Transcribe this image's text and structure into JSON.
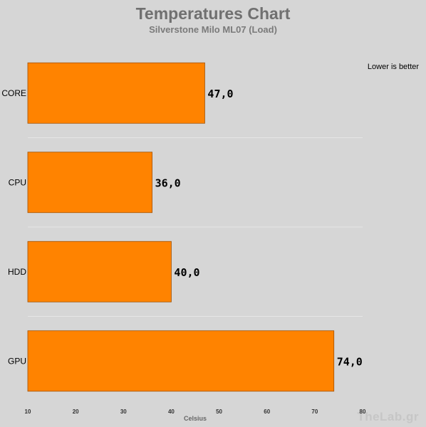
{
  "chart_data": {
    "type": "bar",
    "orientation": "horizontal",
    "title": "Temperatures Chart",
    "subtitle": "Silverstone Milo ML07 (Load)",
    "xlabel": "Celsius",
    "ylabel": "",
    "xlim": [
      10,
      80
    ],
    "x_ticks": [
      "10",
      "20",
      "30",
      "40",
      "50",
      "60",
      "70",
      "80"
    ],
    "categories": [
      "CORE",
      "CPU",
      "HDD",
      "GPU"
    ],
    "values": [
      47.0,
      36.0,
      40.0,
      74.0
    ],
    "value_labels": [
      "47,0",
      "36,0",
      "40,0",
      "74,0"
    ],
    "annotation": "Lower is better",
    "bar_color": "#ff8300",
    "background_color": "#d6d6d6",
    "grid": false
  },
  "watermark": "TheLab.gr"
}
